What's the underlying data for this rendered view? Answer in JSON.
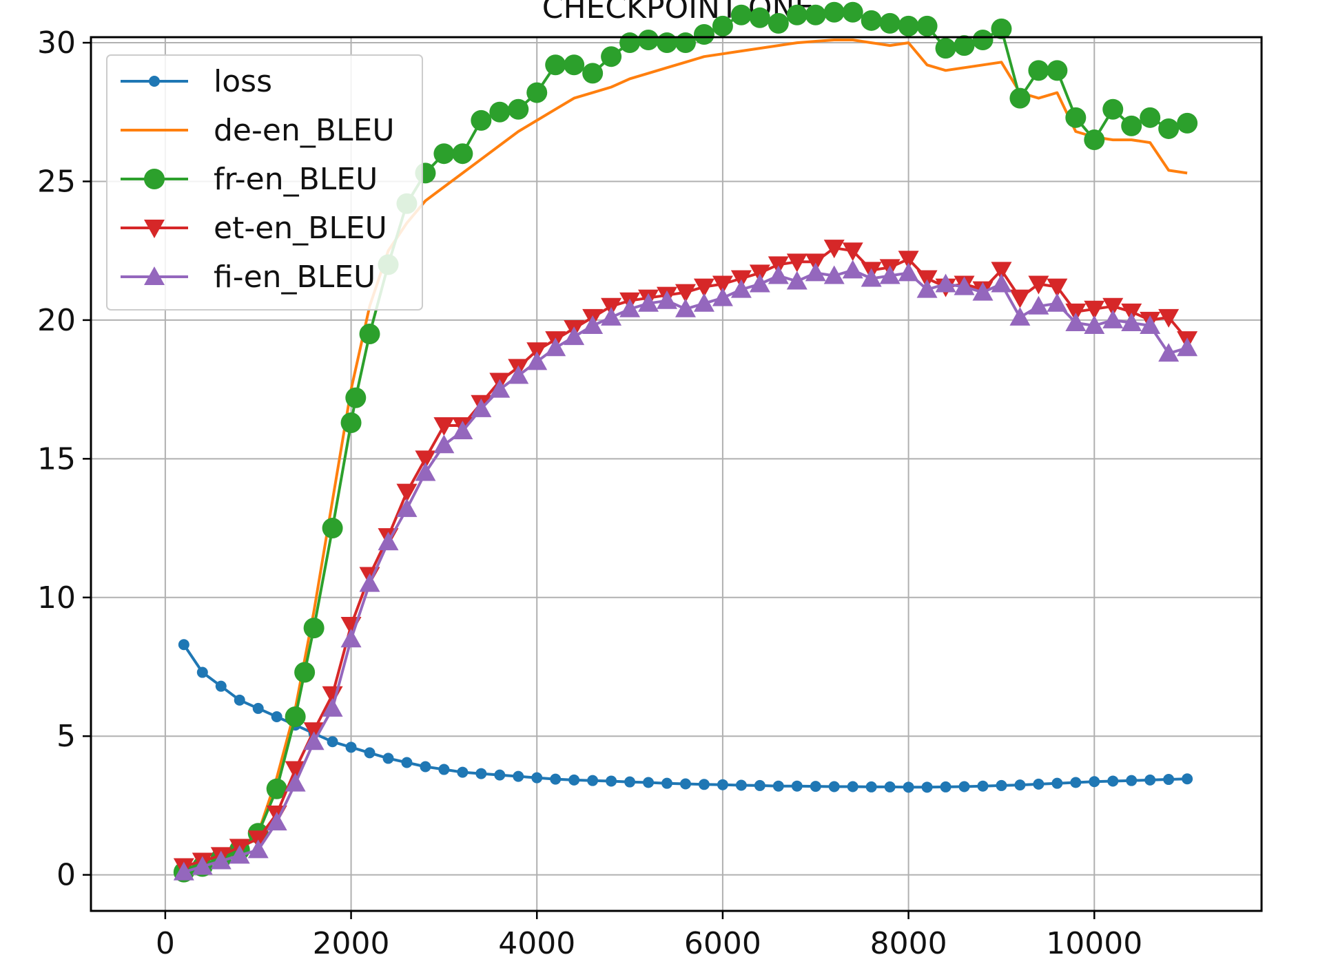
{
  "chart_data": {
    "type": "line",
    "title": "CHECKPOINT ONE",
    "xlabel": "",
    "ylabel": "",
    "xlim": [
      -800,
      11800
    ],
    "ylim": [
      -1.3,
      30.2
    ],
    "x_ticks": [
      0,
      2000,
      4000,
      6000,
      8000,
      10000
    ],
    "x_tick_labels": [
      "0",
      "2000",
      "4000",
      "6000",
      "8000",
      "10000"
    ],
    "y_ticks": [
      0,
      5,
      10,
      15,
      20,
      25,
      30
    ],
    "y_tick_labels": [
      "0",
      "5",
      "10",
      "15",
      "20",
      "25",
      "30"
    ],
    "grid": true,
    "legend_position": "upper-left",
    "series": [
      {
        "name": "loss",
        "color": "#1f77b4",
        "marker": "dot",
        "x": [
          200,
          400,
          600,
          800,
          1000,
          1200,
          1400,
          1600,
          1800,
          2000,
          2200,
          2400,
          2600,
          2800,
          3000,
          3200,
          3400,
          3600,
          3800,
          4000,
          4200,
          4400,
          4600,
          4800,
          5000,
          5200,
          5400,
          5600,
          5800,
          6000,
          6200,
          6400,
          6600,
          6800,
          7000,
          7200,
          7400,
          7600,
          7800,
          8000,
          8200,
          8400,
          8600,
          8800,
          9000,
          9200,
          9400,
          9600,
          9800,
          10000,
          10200,
          10400,
          10600,
          10800,
          11000
        ],
        "y": [
          8.3,
          7.3,
          6.8,
          6.3,
          6.0,
          5.7,
          5.4,
          5.1,
          4.8,
          4.6,
          4.4,
          4.2,
          4.05,
          3.9,
          3.8,
          3.7,
          3.65,
          3.6,
          3.55,
          3.5,
          3.45,
          3.42,
          3.4,
          3.38,
          3.35,
          3.33,
          3.3,
          3.28,
          3.26,
          3.25,
          3.23,
          3.22,
          3.2,
          3.2,
          3.19,
          3.18,
          3.18,
          3.17,
          3.17,
          3.16,
          3.16,
          3.17,
          3.18,
          3.2,
          3.22,
          3.24,
          3.27,
          3.3,
          3.33,
          3.36,
          3.38,
          3.4,
          3.42,
          3.44,
          3.46
        ]
      },
      {
        "name": "de-en_BLEU",
        "color": "#ff7f0e",
        "marker": "none",
        "x": [
          200,
          400,
          600,
          800,
          1000,
          1200,
          1400,
          1600,
          1800,
          2000,
          2200,
          2400,
          2600,
          2800,
          3000,
          3200,
          3400,
          3600,
          3800,
          4000,
          4200,
          4400,
          4600,
          4800,
          5000,
          5200,
          5400,
          5600,
          5800,
          6000,
          6200,
          6400,
          6600,
          6800,
          7000,
          7200,
          7400,
          7600,
          7800,
          8000,
          8200,
          8400,
          8600,
          8800,
          9000,
          9200,
          9400,
          9600,
          9800,
          10000,
          10200,
          10400,
          10600,
          10800,
          11000
        ],
        "y": [
          0.2,
          0.3,
          0.5,
          0.8,
          1.5,
          3.5,
          6.0,
          9.5,
          13.5,
          17.5,
          20.5,
          22.5,
          23.5,
          24.3,
          24.8,
          25.3,
          25.8,
          26.3,
          26.8,
          27.2,
          27.6,
          28.0,
          28.2,
          28.4,
          28.7,
          28.9,
          29.1,
          29.3,
          29.5,
          29.6,
          29.7,
          29.8,
          29.9,
          30.0,
          30.05,
          30.1,
          30.1,
          30.0,
          29.9,
          30.0,
          29.2,
          29.0,
          29.1,
          29.2,
          29.3,
          28.2,
          28.0,
          28.2,
          26.8,
          26.6,
          26.5,
          26.5,
          26.4,
          25.4,
          25.3
        ]
      },
      {
        "name": "fr-en_BLEU",
        "color": "#2ca02c",
        "marker": "circle",
        "x": [
          200,
          400,
          600,
          800,
          1000,
          1200,
          1400,
          1500,
          1600,
          1800,
          2000,
          2050,
          2200,
          2400,
          2600,
          2800,
          3000,
          3200,
          3400,
          3600,
          3800,
          4000,
          4200,
          4400,
          4600,
          4800,
          5000,
          5200,
          5400,
          5600,
          5800,
          6000,
          6200,
          6400,
          6600,
          6800,
          7000,
          7200,
          7400,
          7600,
          7800,
          8000,
          8200,
          8400,
          8600,
          8800,
          9000,
          9200,
          9400,
          9600,
          9800,
          10000,
          10200,
          10400,
          10600,
          10800,
          11000
        ],
        "y": [
          0.1,
          0.3,
          0.6,
          0.9,
          1.5,
          3.1,
          5.7,
          7.3,
          8.9,
          12.5,
          16.3,
          17.2,
          19.5,
          22.0,
          24.2,
          25.3,
          26.0,
          26.0,
          27.2,
          27.5,
          27.6,
          28.2,
          29.2,
          29.2,
          28.9,
          29.5,
          30.0,
          30.1,
          30.0,
          30.0,
          30.3,
          30.6,
          31.0,
          30.9,
          30.7,
          31.0,
          31.0,
          31.1,
          31.1,
          30.8,
          30.7,
          30.6,
          30.6,
          29.8,
          29.9,
          30.1,
          30.5,
          28.0,
          29.0,
          29.0,
          27.3,
          26.5,
          27.6,
          27.0,
          27.3,
          26.9,
          27.1
        ]
      },
      {
        "name": "et-en_BLEU",
        "color": "#d62728",
        "marker": "triangle-down",
        "x": [
          200,
          400,
          600,
          800,
          1000,
          1200,
          1400,
          1600,
          1800,
          2000,
          2200,
          2400,
          2600,
          2800,
          3000,
          3200,
          3400,
          3600,
          3800,
          4000,
          4200,
          4400,
          4600,
          4800,
          5000,
          5200,
          5400,
          5600,
          5800,
          6000,
          6200,
          6400,
          6600,
          6800,
          7000,
          7200,
          7400,
          7600,
          7800,
          8000,
          8200,
          8400,
          8600,
          8800,
          9000,
          9200,
          9400,
          9600,
          9800,
          10000,
          10200,
          10400,
          10600,
          10800,
          11000
        ],
        "y": [
          0.3,
          0.5,
          0.7,
          1.0,
          1.3,
          2.2,
          3.8,
          5.2,
          6.5,
          9.0,
          10.8,
          12.2,
          13.8,
          15.0,
          16.2,
          16.2,
          17.0,
          17.8,
          18.3,
          18.9,
          19.3,
          19.7,
          20.1,
          20.5,
          20.7,
          20.8,
          20.9,
          21.0,
          21.2,
          21.3,
          21.5,
          21.7,
          22.0,
          22.1,
          22.1,
          22.6,
          22.5,
          21.8,
          21.9,
          22.2,
          21.5,
          21.2,
          21.3,
          21.1,
          21.8,
          20.8,
          21.3,
          21.2,
          20.3,
          20.4,
          20.5,
          20.3,
          20.0,
          20.1,
          19.3
        ]
      },
      {
        "name": "fi-en_BLEU",
        "color": "#9467bd",
        "marker": "triangle-up",
        "x": [
          200,
          400,
          600,
          800,
          1000,
          1200,
          1400,
          1600,
          1800,
          2000,
          2200,
          2400,
          2600,
          2800,
          3000,
          3200,
          3400,
          3600,
          3800,
          4000,
          4200,
          4400,
          4600,
          4800,
          5000,
          5200,
          5400,
          5600,
          5800,
          6000,
          6200,
          6400,
          6600,
          6800,
          7000,
          7200,
          7400,
          7600,
          7800,
          8000,
          8200,
          8400,
          8600,
          8800,
          9000,
          9200,
          9400,
          9600,
          9800,
          10000,
          10200,
          10400,
          10600,
          10800,
          11000
        ],
        "y": [
          0.1,
          0.3,
          0.5,
          0.7,
          0.9,
          1.9,
          3.3,
          4.8,
          6.0,
          8.5,
          10.5,
          12.0,
          13.2,
          14.5,
          15.5,
          16.0,
          16.8,
          17.5,
          18.0,
          18.5,
          19.0,
          19.4,
          19.8,
          20.1,
          20.4,
          20.6,
          20.7,
          20.4,
          20.6,
          20.8,
          21.1,
          21.3,
          21.6,
          21.4,
          21.7,
          21.6,
          21.8,
          21.5,
          21.6,
          21.7,
          21.1,
          21.3,
          21.2,
          21.0,
          21.3,
          20.1,
          20.5,
          20.6,
          19.9,
          19.8,
          20.0,
          19.9,
          19.8,
          18.8,
          19.0
        ]
      }
    ]
  }
}
